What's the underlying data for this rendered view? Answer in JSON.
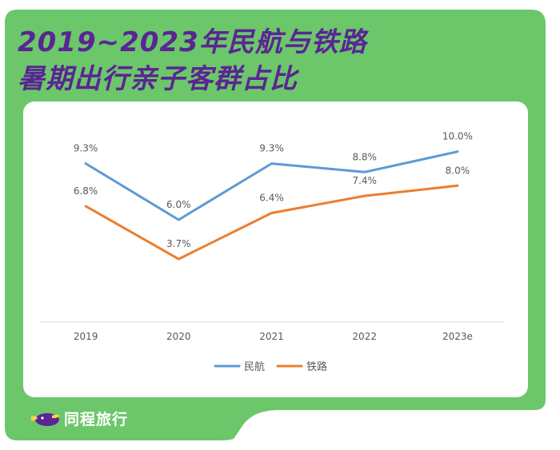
{
  "title": {
    "line1": "2019~2023年民航与铁路",
    "line2": "暑期出行亲子客群占比"
  },
  "colors": {
    "background": "#6cc76a",
    "title": "#5a2594",
    "card": "#ffffff",
    "axis": "#d9d9d9",
    "label": "#595959"
  },
  "brand": {
    "name": "同程旅行"
  },
  "chart_data": {
    "type": "line",
    "title": "2019~2023年民航与铁路暑期出行亲子客群占比",
    "categories": [
      "2019",
      "2020",
      "2021",
      "2022",
      "2023e"
    ],
    "ylim": [
      0,
      12
    ],
    "grid": false,
    "legend_position": "bottom-center",
    "series": [
      {
        "name": "民航",
        "color": "#5b9bd5",
        "values": [
          9.3,
          6.0,
          9.3,
          8.8,
          10.0
        ],
        "labels": [
          "9.3%",
          "6.0%",
          "9.3%",
          "8.8%",
          "10.0%"
        ]
      },
      {
        "name": "铁路",
        "color": "#ed7d31",
        "values": [
          6.8,
          3.7,
          6.4,
          7.4,
          8.0
        ],
        "labels": [
          "6.8%",
          "3.7%",
          "6.4%",
          "7.4%",
          "8.0%"
        ]
      }
    ]
  }
}
